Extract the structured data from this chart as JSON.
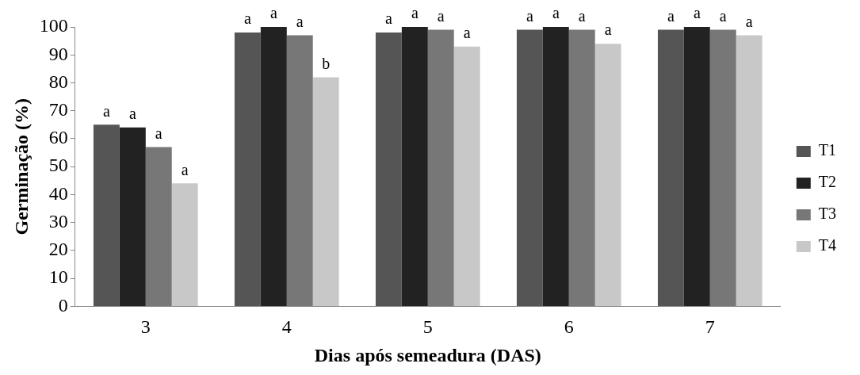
{
  "chart_data": {
    "type": "bar",
    "xlabel": "Dias após semeadura (DAS)",
    "ylabel": "Germinação (%)",
    "categories": [
      "3",
      "4",
      "5",
      "6",
      "7"
    ],
    "series": [
      {
        "name": "T1",
        "color": "#555555",
        "values": [
          65,
          98,
          98,
          99,
          99
        ],
        "value_labels": [
          "a",
          "a",
          "a",
          "a",
          "a"
        ]
      },
      {
        "name": "T2",
        "color": "#222222",
        "values": [
          64,
          100,
          100,
          100,
          100
        ],
        "value_labels": [
          "a",
          "a",
          "a",
          "a",
          "a"
        ]
      },
      {
        "name": "T3",
        "color": "#777777",
        "values": [
          57,
          97,
          99,
          99,
          99
        ],
        "value_labels": [
          "a",
          "a",
          "a",
          "a",
          "a"
        ]
      },
      {
        "name": "T4",
        "color": "#c8c8c8",
        "values": [
          44,
          82,
          93,
          94,
          97
        ],
        "value_labels": [
          "a",
          "b",
          "a",
          "a",
          "a"
        ]
      }
    ],
    "ylim": [
      0,
      100
    ],
    "yticks": [
      0,
      10,
      20,
      30,
      40,
      50,
      60,
      70,
      80,
      90,
      100
    ],
    "grid": false,
    "legend": "right"
  }
}
